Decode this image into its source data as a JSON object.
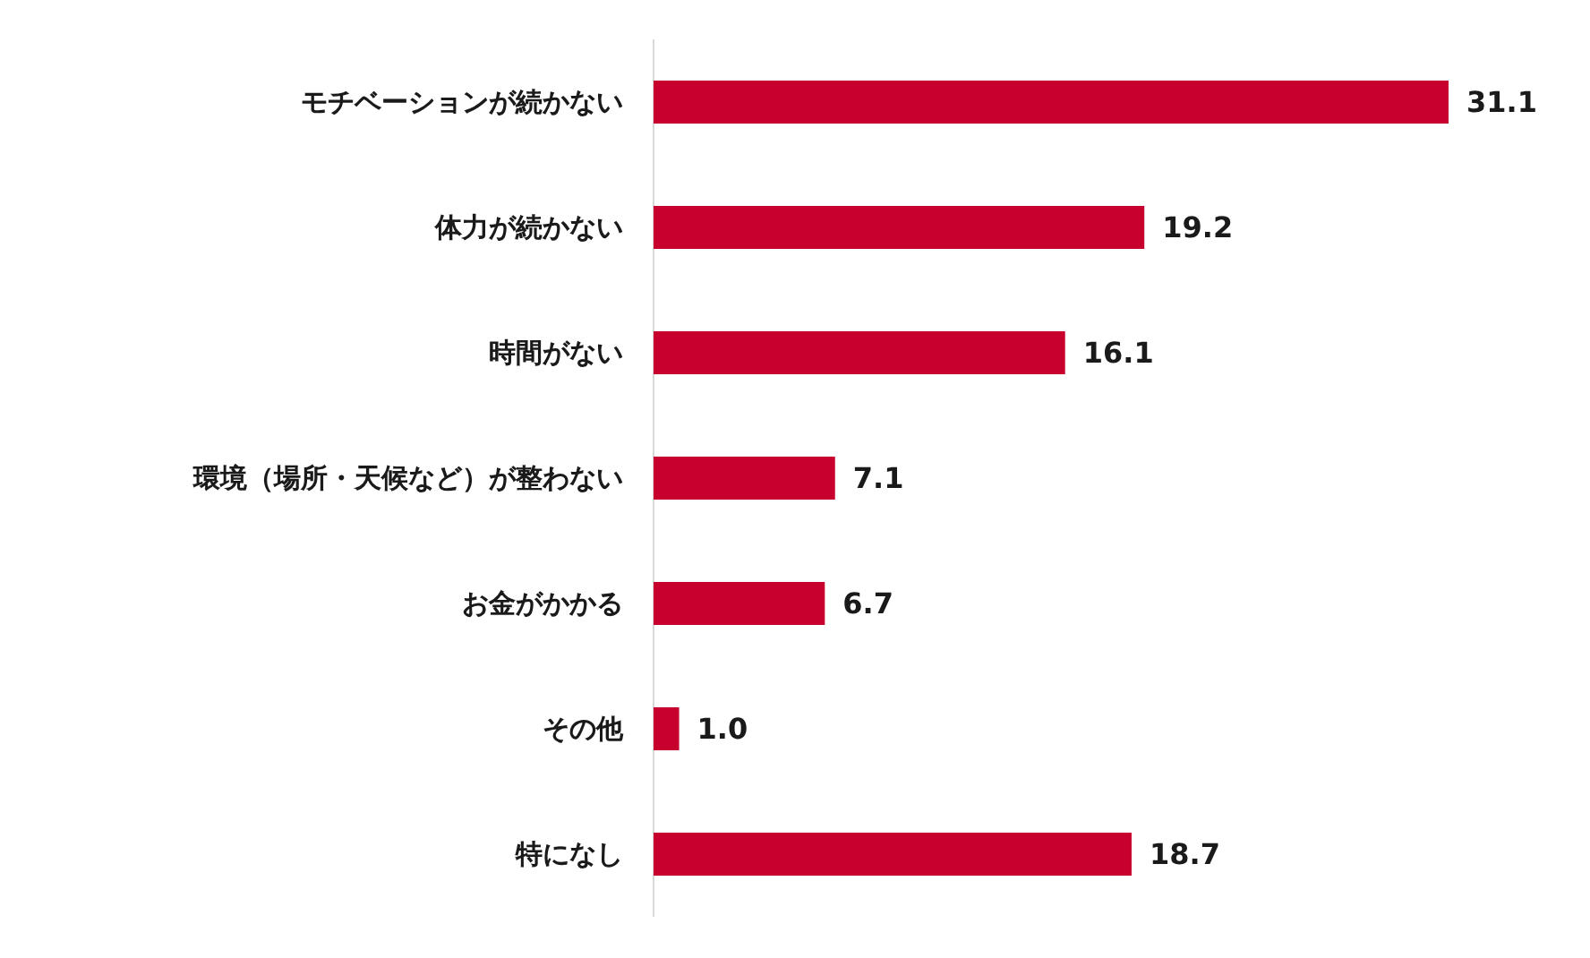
{
  "chart_data": {
    "type": "bar",
    "orientation": "horizontal",
    "categories": [
      "モチベーションが続かない",
      "体力が続かない",
      "時間がない",
      "環境（場所・天候など）が整わない",
      "お金がかかる",
      "その他",
      "特になし"
    ],
    "values": [
      31.1,
      19.2,
      16.1,
      7.1,
      6.7,
      1.0,
      18.7
    ],
    "value_labels": [
      "31.1",
      "19.2",
      "16.1",
      "7.1",
      "6.7",
      "1.0",
      "18.7"
    ],
    "color": "#c8002d"
  }
}
